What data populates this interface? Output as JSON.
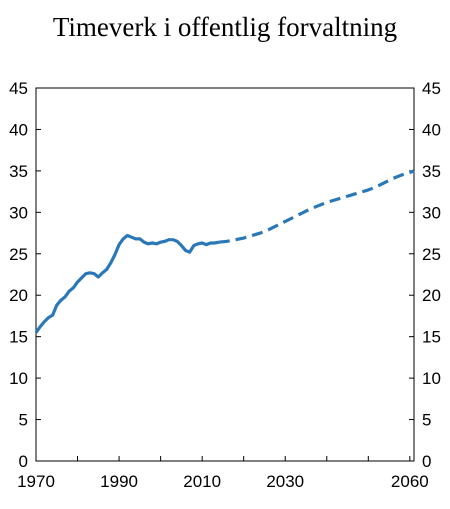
{
  "chart_data": {
    "type": "line",
    "title": "Timeverk i offentlig forvaltning",
    "xlabel": "",
    "ylabel": "",
    "xlim": [
      1970,
      2061
    ],
    "ylim": [
      0,
      45
    ],
    "yticks": [
      0,
      5,
      10,
      15,
      20,
      25,
      30,
      35,
      40,
      45
    ],
    "xticks": [
      1970,
      1990,
      2010,
      2030,
      2060
    ],
    "grid": false,
    "legend": "none",
    "colors": {
      "line": "#2a78b7",
      "axis": "#000000"
    },
    "series": [
      {
        "style": "solid",
        "x": [
          1970,
          1971,
          1972,
          1973,
          1974,
          1975,
          1976,
          1977,
          1978,
          1979,
          1980,
          1981,
          1982,
          1983,
          1984,
          1985,
          1986,
          1987,
          1988,
          1989,
          1990,
          1991,
          1992,
          1993,
          1994,
          1995,
          1996,
          1997,
          1998,
          1999,
          2000,
          2001,
          2002,
          2003,
          2004,
          2005,
          2006,
          2007,
          2008,
          2009,
          2010,
          2011,
          2012,
          2013,
          2014
        ],
        "y": [
          15.5,
          16.2,
          16.8,
          17.3,
          17.6,
          18.8,
          19.4,
          19.8,
          20.5,
          20.9,
          21.6,
          22.1,
          22.6,
          22.7,
          22.6,
          22.2,
          22.7,
          23.1,
          23.9,
          24.9,
          26.1,
          26.8,
          27.2,
          27.0,
          26.8,
          26.8,
          26.4,
          26.2,
          26.3,
          26.2,
          26.4,
          26.5,
          26.7,
          26.7,
          26.5,
          26.0,
          25.4,
          25.2,
          26.0,
          26.2,
          26.3,
          26.1,
          26.3,
          26.3,
          26.4
        ]
      },
      {
        "style": "dashed",
        "x": [
          2014,
          2016,
          2018,
          2020,
          2022,
          2024,
          2026,
          2028,
          2030,
          2032,
          2034,
          2036,
          2038,
          2040,
          2042,
          2044,
          2046,
          2048,
          2050,
          2052,
          2054,
          2056,
          2058,
          2060,
          2061
        ],
        "y": [
          26.4,
          26.5,
          26.7,
          26.9,
          27.2,
          27.5,
          27.9,
          28.4,
          28.9,
          29.4,
          29.9,
          30.4,
          30.8,
          31.2,
          31.5,
          31.8,
          32.1,
          32.4,
          32.7,
          33.1,
          33.6,
          34.1,
          34.5,
          34.8,
          35.0
        ]
      }
    ]
  }
}
